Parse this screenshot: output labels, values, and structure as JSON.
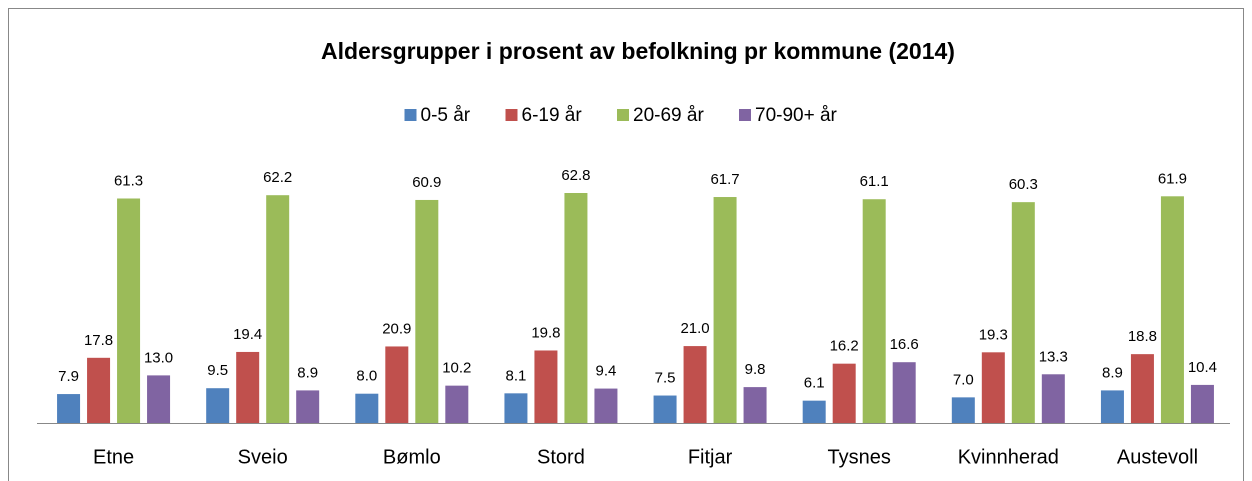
{
  "chart_data": {
    "type": "bar",
    "title": "Aldersgrupper i prosent av befolkning pr kommune (2014)",
    "categories": [
      "Etne",
      "Sveio",
      "Bømlo",
      "Stord",
      "Fitjar",
      "Tysnes",
      "Kvinnherad",
      "Austevoll"
    ],
    "series": [
      {
        "name": "0-5 år",
        "color": "#4f81bd",
        "values": [
          7.9,
          9.5,
          8.0,
          8.1,
          7.5,
          6.1,
          7.0,
          8.9
        ],
        "value_labels": [
          "7.9",
          "9.5",
          "8.0",
          "8.1",
          "7.5",
          "6.1",
          "7.0",
          "8.9"
        ]
      },
      {
        "name": "6-19 år",
        "color": "#c0504d",
        "values": [
          17.8,
          19.4,
          20.9,
          19.8,
          21.0,
          16.2,
          19.3,
          18.8
        ],
        "value_labels": [
          "17.8",
          "19.4",
          "20.9",
          "19.8",
          "21.0",
          "16.2",
          "19.3",
          "18.8"
        ]
      },
      {
        "name": "20-69 år",
        "color": "#9bbb59",
        "values": [
          61.3,
          62.2,
          60.9,
          62.8,
          61.7,
          61.1,
          60.3,
          61.9
        ],
        "value_labels": [
          "61.3",
          "62.2",
          "60.9",
          "62.8",
          "61.7",
          "61.1",
          "60.3",
          "61.9"
        ]
      },
      {
        "name": "70-90+ år",
        "color": "#8064a2",
        "values": [
          13.0,
          8.9,
          10.2,
          9.4,
          9.8,
          16.6,
          13.3,
          10.4
        ],
        "value_labels": [
          "13.0",
          "8.9",
          "10.2",
          "9.4",
          "9.8",
          "16.6",
          "13.3",
          "10.4"
        ]
      }
    ],
    "legend": "top"
  }
}
